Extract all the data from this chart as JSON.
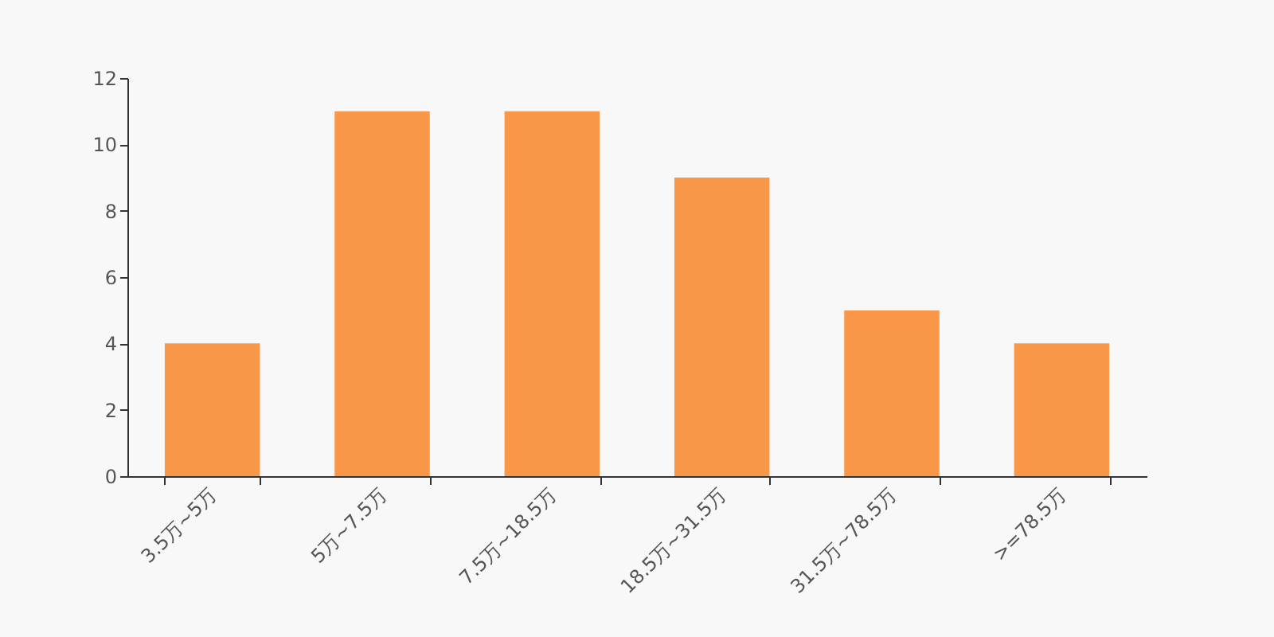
{
  "chart_data": {
    "type": "bar",
    "categories": [
      "3.5万~5万",
      "5万~7.5万",
      "7.5万~18.5万",
      "18.5万~31.5万",
      "31.5万~78.5万",
      ">=78.5万"
    ],
    "values": [
      4,
      11,
      11,
      9,
      5,
      4
    ],
    "color": "#f79747",
    "ylim": [
      0,
      12
    ],
    "yticks": [
      0,
      2,
      4,
      6,
      8,
      10,
      12
    ],
    "grid": false,
    "legend": false
  }
}
